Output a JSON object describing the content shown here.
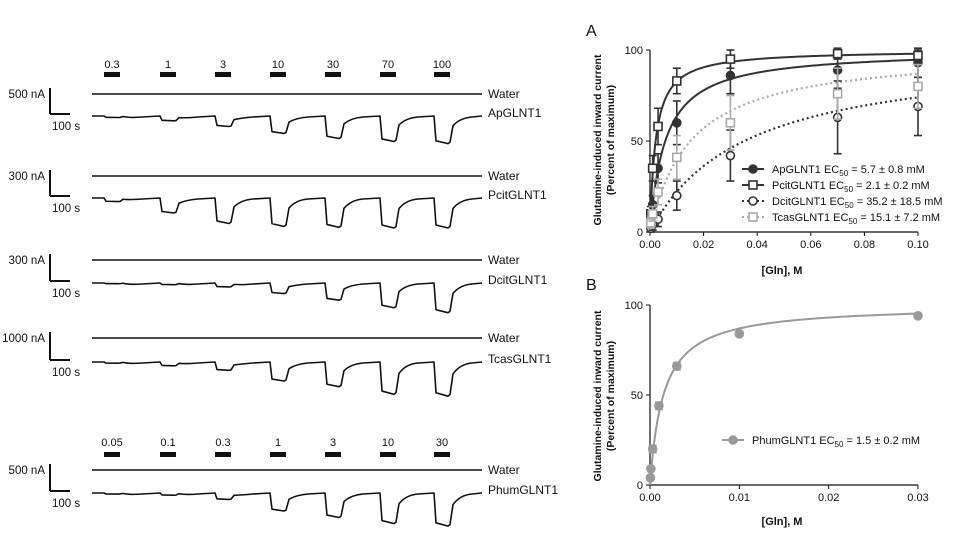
{
  "traces": {
    "groups": [
      {
        "concentrations": [
          "0.3",
          "1",
          "3",
          "10",
          "30",
          "70",
          "100"
        ],
        "recordings": [
          {
            "scale_current": "500 nA",
            "scale_time": "100 s",
            "water_label": "Water",
            "gene_label": "ApGLNT1",
            "responses": [
              0.05,
              0.16,
              0.35,
              0.58,
              0.75,
              0.85,
              0.92
            ]
          },
          {
            "scale_current": "300 nA",
            "scale_time": "100 s",
            "water_label": "Water",
            "gene_label": "PcitGLNT1",
            "responses": [
              0.12,
              0.5,
              0.85,
              0.95,
              0.98,
              1.0,
              1.0
            ]
          },
          {
            "scale_current": "300 nA",
            "scale_time": "100 s",
            "water_label": "Water",
            "gene_label": "DcitGLNT1",
            "responses": [
              0.02,
              0.05,
              0.12,
              0.32,
              0.52,
              0.75,
              0.9
            ]
          },
          {
            "scale_current": "1000 nA",
            "scale_time": "100 s",
            "water_label": "Water",
            "gene_label": "TcasGLNT1",
            "responses": [
              0.03,
              0.1,
              0.22,
              0.5,
              0.65,
              0.85,
              0.9
            ]
          }
        ]
      },
      {
        "concentrations": [
          "0.05",
          "0.1",
          "0.3",
          "1",
          "3",
          "10",
          "30"
        ],
        "recordings": [
          {
            "scale_current": "500 nA",
            "scale_time": "100 s",
            "water_label": "Water",
            "gene_label": "PhumGLNT1",
            "responses": [
              0.03,
              0.06,
              0.18,
              0.5,
              0.68,
              0.85,
              0.92
            ]
          }
        ]
      }
    ]
  },
  "chart_data": [
    {
      "panel_label": "A",
      "type": "scatter",
      "xlabel": "[Gln], M",
      "ylabel_lines": [
        "Glutamine-induced inward current",
        "(Percent of maximum)"
      ],
      "xlim": [
        0,
        0.1
      ],
      "ylim": [
        0,
        100
      ],
      "x_ticks": [
        "0.00",
        "0.02",
        "0.04",
        "0.06",
        "0.08",
        "0.10"
      ],
      "y_ticks": [
        "0",
        "50",
        "100"
      ],
      "legend_position": "bottom-right",
      "series": [
        {
          "name": "ApGLNT1",
          "legend_prefix": "ApGLNT1 EC",
          "legend_sub": "50",
          "legend_suffix": " = 5.7 ± 0.8 mM",
          "ec50": 0.0057,
          "color": "#333333",
          "marker": "filled-circle",
          "line": "solid",
          "x": [
            0.0003,
            0.001,
            0.003,
            0.01,
            0.03,
            0.07,
            0.1
          ],
          "y": [
            5,
            15,
            35,
            60,
            86,
            89,
            93
          ],
          "err": [
            3,
            5,
            8,
            12,
            10,
            10,
            8
          ]
        },
        {
          "name": "PcitGLNT1",
          "legend_prefix": "PcitGLNT1 EC",
          "legend_sub": "50",
          "legend_suffix": " = 2.1 ± 0.2 mM",
          "ec50": 0.0021,
          "color": "#333333",
          "marker": "open-square",
          "line": "solid",
          "x": [
            0.0003,
            0.001,
            0.003,
            0.01,
            0.03,
            0.07,
            0.1
          ],
          "y": [
            10,
            35,
            58,
            83,
            95,
            98,
            97
          ],
          "err": [
            4,
            7,
            10,
            7,
            5,
            3,
            3
          ]
        },
        {
          "name": "DcitGLNT1",
          "legend_prefix": "DcitGLNT1 EC",
          "legend_sub": "50",
          "legend_suffix": " = 35.2 ± 18.5 mM",
          "ec50": 0.0352,
          "color": "#333333",
          "marker": "open-circle",
          "line": "dotted",
          "x": [
            0.0003,
            0.001,
            0.003,
            0.01,
            0.03,
            0.07,
            0.1
          ],
          "y": [
            2,
            4,
            7,
            20,
            42,
            63,
            69
          ],
          "err": [
            2,
            3,
            4,
            8,
            14,
            20,
            16
          ]
        },
        {
          "name": "TcasGLNT1",
          "legend_prefix": "TcasGLNT1 EC",
          "legend_sub": "50",
          "legend_suffix": " = 15.1 ± 7.2 mM",
          "ec50": 0.0151,
          "color": "#aaaaaa",
          "marker": "open-square",
          "line": "dotted",
          "x": [
            0.0003,
            0.001,
            0.003,
            0.01,
            0.03,
            0.07,
            0.1
          ],
          "y": [
            5,
            10,
            22,
            41,
            60,
            76,
            80
          ],
          "err": [
            3,
            4,
            7,
            12,
            15,
            14,
            12
          ]
        }
      ]
    },
    {
      "panel_label": "B",
      "type": "scatter",
      "xlabel": "[Gln], M",
      "ylabel_lines": [
        "Glutamine-induced inward current",
        "(Percent of maximum)"
      ],
      "xlim": [
        0,
        0.03
      ],
      "ylim": [
        0,
        100
      ],
      "x_ticks": [
        "0.00",
        "0.01",
        "0.02",
        "0.03"
      ],
      "y_ticks": [
        "0",
        "50",
        "100"
      ],
      "legend_position": "center-right",
      "series": [
        {
          "name": "PhumGLNT1",
          "legend_prefix": "PhumGLNT1 EC",
          "legend_sub": "50",
          "legend_suffix": " = 1.5 ± 0.2 mM",
          "ec50": 0.0015,
          "color": "#999999",
          "marker": "filled-circle",
          "line": "solid",
          "x": [
            5e-05,
            0.0001,
            0.0003,
            0.001,
            0.003,
            0.01,
            0.03
          ],
          "y": [
            4,
            9,
            20,
            44,
            66,
            84,
            94
          ],
          "err": [
            1,
            1,
            2,
            2,
            2,
            1,
            1
          ]
        }
      ]
    }
  ]
}
